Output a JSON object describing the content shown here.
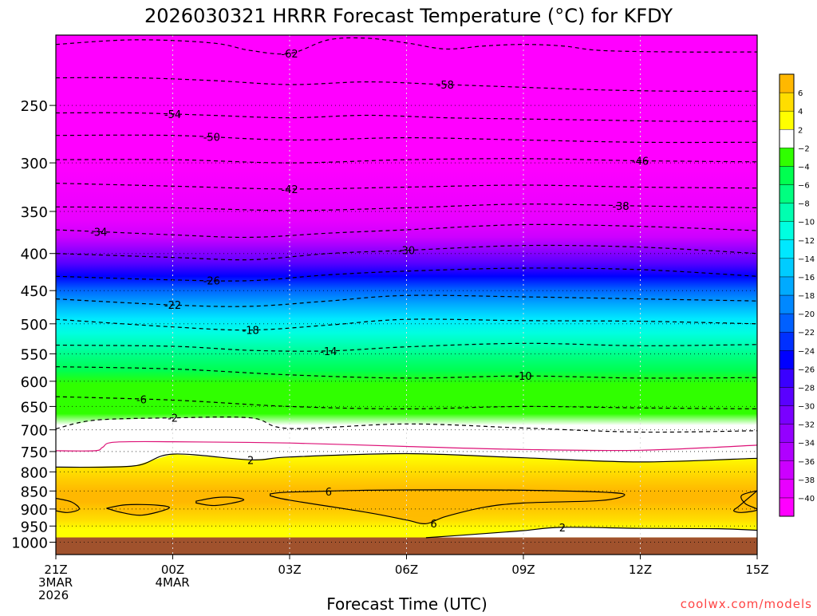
{
  "chart_data": {
    "type": "heatmap",
    "title": "2026030321 HRRR Forecast Temperature (°C) for KFDY",
    "xlabel": "Forecast Time (UTC)",
    "ylabel": "",
    "credit": "coolwx.com/models",
    "x_range_hours": [
      0,
      18
    ],
    "x_ticks": [
      {
        "hour": 0,
        "lines": [
          "21Z",
          "3MAR",
          "2026"
        ]
      },
      {
        "hour": 3,
        "lines": [
          "00Z",
          "4MAR"
        ]
      },
      {
        "hour": 6,
        "lines": [
          "03Z"
        ]
      },
      {
        "hour": 9,
        "lines": [
          "06Z"
        ]
      },
      {
        "hour": 12,
        "lines": [
          "09Z"
        ]
      },
      {
        "hour": 15,
        "lines": [
          "12Z"
        ]
      },
      {
        "hour": 18,
        "lines": [
          "15Z"
        ]
      }
    ],
    "y_scale": "log-pressure",
    "y_range_hPa": [
      1040,
      200
    ],
    "y_ticks": [
      250,
      300,
      350,
      400,
      450,
      500,
      550,
      600,
      650,
      700,
      750,
      800,
      850,
      900,
      950,
      1000
    ],
    "surface_pressure_hPa": 985,
    "colorbar": {
      "levels": [
        -40,
        -38,
        -36,
        -34,
        -32,
        -30,
        -28,
        -26,
        -24,
        -22,
        -20,
        -18,
        -16,
        -14,
        -12,
        -10,
        -8,
        -6,
        -4,
        -2,
        2,
        4,
        6
      ],
      "label_levels": [
        -40,
        -38,
        -36,
        -34,
        -32,
        -30,
        -28,
        -26,
        -24,
        -22,
        -20,
        -18,
        -16,
        -14,
        -12,
        -10,
        -8,
        -6,
        -4,
        -2,
        2,
        4,
        6
      ],
      "colors": [
        "#ff00ff",
        "#e800ff",
        "#cc00ff",
        "#b000ff",
        "#9400ff",
        "#7a00ff",
        "#5a00ff",
        "#3a00ff",
        "#0000ff",
        "#0030ff",
        "#0060ff",
        "#0088ff",
        "#00aaff",
        "#00ccff",
        "#00e8ff",
        "#00ffe0",
        "#00ffb0",
        "#00ff80",
        "#00ff50",
        "#30ff00",
        "#ffffff",
        "#ffff00",
        "#ffdd00",
        "#ffb800"
      ]
    },
    "contours": [
      {
        "value": -62,
        "label": "-62",
        "label_hour": 6,
        "p": [
          [
            0,
            206
          ],
          [
            2,
            203
          ],
          [
            4,
            205
          ],
          [
            5,
            210
          ],
          [
            6,
            212
          ],
          [
            7,
            203
          ],
          [
            8,
            202
          ],
          [
            9,
            205
          ],
          [
            10,
            209
          ],
          [
            11,
            207
          ],
          [
            12,
            206
          ],
          [
            13,
            207
          ],
          [
            14,
            210
          ],
          [
            16,
            211
          ],
          [
            18,
            211
          ]
        ]
      },
      {
        "value": -58,
        "label": "-58",
        "label_hour": 10,
        "p": [
          [
            0,
            229
          ],
          [
            2,
            229
          ],
          [
            4,
            231
          ],
          [
            6,
            234
          ],
          [
            8,
            232
          ],
          [
            10,
            234
          ],
          [
            12,
            236
          ],
          [
            14,
            238
          ],
          [
            16,
            239
          ],
          [
            18,
            239
          ]
        ]
      },
      {
        "value": -54,
        "label": "-54",
        "label_hour": 3,
        "p": [
          [
            0,
            256
          ],
          [
            2,
            256
          ],
          [
            4,
            258
          ],
          [
            6,
            260
          ],
          [
            8,
            258
          ],
          [
            10,
            260
          ],
          [
            12,
            261
          ],
          [
            14,
            262
          ],
          [
            16,
            263
          ],
          [
            18,
            263
          ]
        ]
      },
      {
        "value": -50,
        "label": "-50",
        "label_hour": 4,
        "p": [
          [
            0,
            275
          ],
          [
            3,
            275
          ],
          [
            6,
            279
          ],
          [
            9,
            277
          ],
          [
            12,
            279
          ],
          [
            15,
            281
          ],
          [
            18,
            281
          ]
        ]
      },
      {
        "value": -46,
        "label": "-46",
        "label_hour": 15,
        "p": [
          [
            0,
            297
          ],
          [
            3,
            297
          ],
          [
            6,
            300
          ],
          [
            9,
            297
          ],
          [
            12,
            296
          ],
          [
            15,
            298
          ],
          [
            18,
            299
          ]
        ]
      },
      {
        "value": -42,
        "label": "-42",
        "label_hour": 6,
        "p": [
          [
            0,
            320
          ],
          [
            3,
            323
          ],
          [
            6,
            326
          ],
          [
            9,
            324
          ],
          [
            12,
            322
          ],
          [
            15,
            324
          ],
          [
            18,
            325
          ]
        ]
      },
      {
        "value": -38,
        "label": "-38",
        "label_hour": 14.5,
        "p": [
          [
            0,
            345
          ],
          [
            3,
            346
          ],
          [
            6,
            349
          ],
          [
            9,
            346
          ],
          [
            12,
            342
          ],
          [
            15,
            344
          ],
          [
            18,
            346
          ]
        ]
      },
      {
        "value": -34,
        "label": "-34",
        "label_hour": 1.1,
        "p": [
          [
            0,
            371
          ],
          [
            3,
            377
          ],
          [
            5,
            380
          ],
          [
            7,
            375
          ],
          [
            9,
            371
          ],
          [
            12,
            365
          ],
          [
            15,
            367
          ],
          [
            18,
            372
          ]
        ]
      },
      {
        "value": -30,
        "label": "-30",
        "label_hour": 9,
        "p": [
          [
            0,
            400
          ],
          [
            3,
            405
          ],
          [
            5,
            408
          ],
          [
            7,
            400
          ],
          [
            9,
            396
          ],
          [
            12,
            390
          ],
          [
            15,
            392
          ],
          [
            18,
            400
          ]
        ]
      },
      {
        "value": -26,
        "label": "-26",
        "label_hour": 4,
        "p": [
          [
            0,
            430
          ],
          [
            3,
            435
          ],
          [
            5,
            436
          ],
          [
            7,
            428
          ],
          [
            9,
            423
          ],
          [
            12,
            419
          ],
          [
            15,
            421
          ],
          [
            18,
            430
          ]
        ]
      },
      {
        "value": -22,
        "label": "-22",
        "label_hour": 3,
        "p": [
          [
            0,
            462
          ],
          [
            3,
            471
          ],
          [
            5,
            473
          ],
          [
            7,
            465
          ],
          [
            9,
            457
          ],
          [
            12,
            459
          ],
          [
            15,
            462
          ],
          [
            18,
            465
          ]
        ]
      },
      {
        "value": -18,
        "label": "-18",
        "label_hour": 5,
        "p": [
          [
            0,
            493
          ],
          [
            3,
            505
          ],
          [
            5,
            510
          ],
          [
            7,
            502
          ],
          [
            9,
            493
          ],
          [
            12,
            495
          ],
          [
            15,
            496
          ],
          [
            18,
            500
          ]
        ]
      },
      {
        "value": -14,
        "label": "-14",
        "label_hour": 7,
        "p": [
          [
            0,
            535
          ],
          [
            3,
            537
          ],
          [
            5,
            544
          ],
          [
            7,
            545
          ],
          [
            9,
            538
          ],
          [
            12,
            532
          ],
          [
            15,
            536
          ],
          [
            18,
            534
          ]
        ]
      },
      {
        "value": -10,
        "label": "-10",
        "label_hour": 12,
        "p": [
          [
            0,
            573
          ],
          [
            3,
            577
          ],
          [
            6,
            588
          ],
          [
            9,
            594
          ],
          [
            12,
            590
          ],
          [
            15,
            594
          ],
          [
            18,
            593
          ]
        ]
      },
      {
        "value": -6,
        "label": "-6",
        "label_hour": 2.2,
        "p": [
          [
            0,
            630
          ],
          [
            3,
            637
          ],
          [
            6,
            650
          ],
          [
            9,
            655
          ],
          [
            12,
            650
          ],
          [
            15,
            653
          ],
          [
            18,
            655
          ]
        ]
      },
      {
        "value": -2,
        "label": "-2",
        "label_hour": 3,
        "p": [
          [
            0,
            698
          ],
          [
            1,
            679
          ],
          [
            3,
            674
          ],
          [
            5,
            674
          ],
          [
            6,
            697
          ],
          [
            9,
            687
          ],
          [
            12,
            696
          ],
          [
            15,
            705
          ],
          [
            18,
            702
          ]
        ]
      },
      {
        "value": 0,
        "label": "",
        "label_hour": 0,
        "color": "#dd1177",
        "dash": "",
        "p": [
          [
            0,
            748
          ],
          [
            1,
            748
          ],
          [
            1.2,
            740
          ],
          [
            1.5,
            728
          ],
          [
            3,
            727
          ],
          [
            6,
            730
          ],
          [
            9,
            738
          ],
          [
            12,
            745
          ],
          [
            15,
            747
          ],
          [
            18,
            735
          ]
        ]
      },
      {
        "value": 2,
        "label": "2",
        "label_hour": 5,
        "dash": "",
        "p": [
          [
            0,
            788
          ],
          [
            2,
            785
          ],
          [
            3,
            756
          ],
          [
            5,
            770
          ],
          [
            6,
            763
          ],
          [
            9,
            755
          ],
          [
            12,
            765
          ],
          [
            15,
            775
          ],
          [
            18,
            766
          ]
        ]
      },
      {
        "value": 2,
        "label": "2",
        "label_hour": 13,
        "dash": "",
        "p": [
          [
            9.5,
            986
          ],
          [
            11,
            973
          ],
          [
            12,
            964
          ],
          [
            13,
            954
          ],
          [
            15,
            957
          ],
          [
            17,
            958
          ],
          [
            18,
            963
          ]
        ]
      }
    ],
    "closed_contours": [
      {
        "value": 6,
        "label": "6",
        "label_hour": 7,
        "p": [
          [
            5.5,
            858
          ],
          [
            6,
            853
          ],
          [
            8,
            848
          ],
          [
            10,
            847
          ],
          [
            12,
            848
          ],
          [
            14,
            853
          ],
          [
            14.6,
            860
          ],
          [
            14,
            876
          ],
          [
            12,
            883
          ],
          [
            11,
            895
          ],
          [
            10,
            922
          ],
          [
            9.5,
            943
          ],
          [
            9,
            932
          ],
          [
            8,
            910
          ],
          [
            6,
            875
          ],
          [
            5.5,
            863
          ]
        ]
      },
      {
        "value": 6,
        "label": "",
        "label_hour": 0,
        "p": [
          [
            0,
            870
          ],
          [
            0.4,
            880
          ],
          [
            0.6,
            900
          ],
          [
            0.3,
            910
          ],
          [
            0,
            905
          ]
        ]
      },
      {
        "value": 6,
        "label": "",
        "label_hour": 0,
        "p": [
          [
            1.3,
            898
          ],
          [
            1.8,
            888
          ],
          [
            2.6,
            889
          ],
          [
            2.9,
            898
          ],
          [
            2.2,
            918
          ],
          [
            1.6,
            908
          ]
        ]
      },
      {
        "value": 6,
        "label": "",
        "label_hour": 0,
        "p": [
          [
            3.6,
            878
          ],
          [
            4.1,
            868
          ],
          [
            4.6,
            868
          ],
          [
            4.8,
            876
          ],
          [
            4.1,
            890
          ],
          [
            3.6,
            883
          ]
        ]
      },
      {
        "value": 6,
        "label": "",
        "label_hour": 0,
        "p": [
          [
            18,
            849
          ],
          [
            17.6,
            862
          ],
          [
            17.7,
            885
          ],
          [
            18,
            902
          ],
          [
            17.6,
            910
          ],
          [
            17.4,
            905
          ],
          [
            17.5,
            895
          ]
        ]
      }
    ]
  }
}
